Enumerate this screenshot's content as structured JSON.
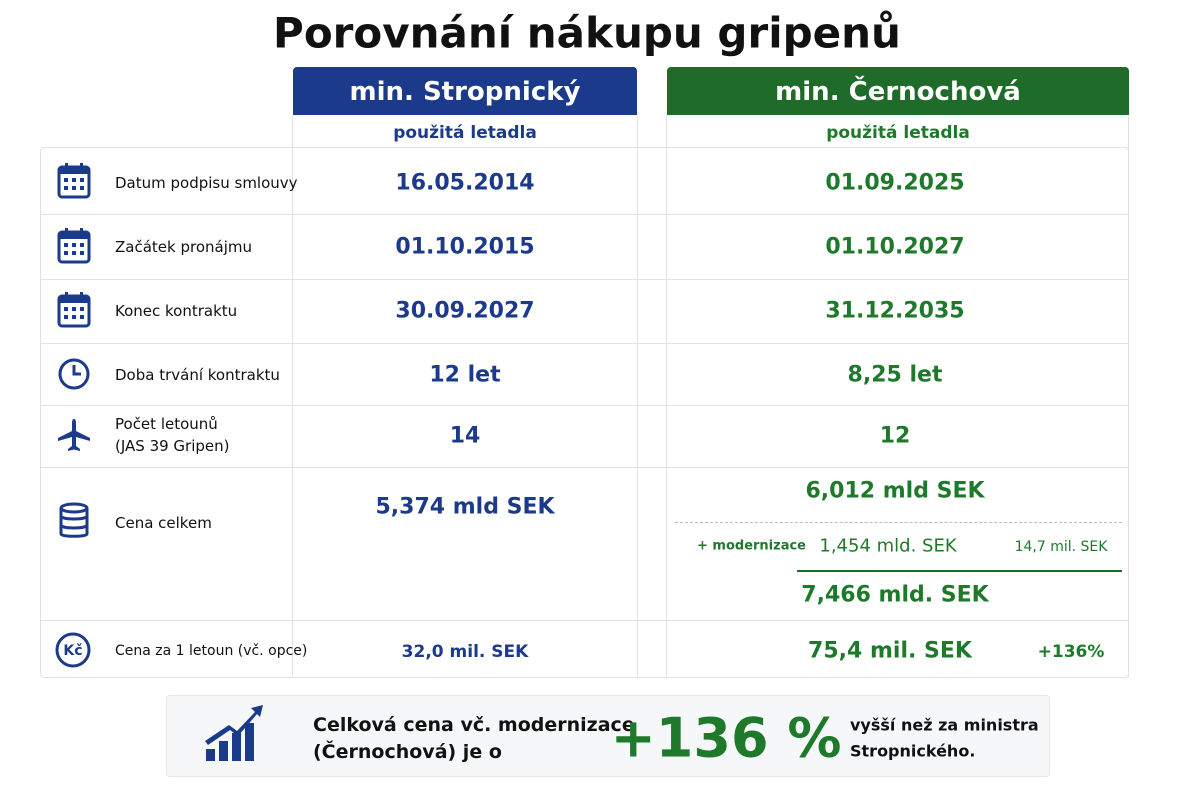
{
  "header": {
    "title": "Porovnání nákupu gripenů"
  },
  "columns": [
    {
      "name": "min. Stropnický",
      "subtitle": "použitá letadla"
    },
    {
      "name": "min. Černochová",
      "subtitle": "použitá letadla"
    }
  ],
  "rows": [
    {
      "label": "Datum podpisu smlouvy",
      "values": [
        "16.05.2014",
        "01.09.2025"
      ]
    },
    {
      "label": "Začátek pronájmu",
      "values": [
        "01.10.2015",
        "01.10.2027"
      ]
    },
    {
      "label": "Konec kontraktu",
      "values": [
        "30.09.2027",
        "31.12.2035"
      ]
    },
    {
      "label": "Doba trvání kontraktu",
      "values": [
        "12 let",
        "8,25 let"
      ]
    },
    {
      "label": "Počet letounů",
      "label_sub": "(JAS 39 Gripen)",
      "values": [
        "14",
        "12"
      ]
    },
    {
      "label": "Cena celkem",
      "values": [
        "5,374 mld SEK",
        "6,012 mld SEK"
      ],
      "modernization": {
        "label": "+ modernizace",
        "value": "1,454 mld. SEK",
        "per_plane": "14,7 mil. SEK",
        "total": "7,466 mld. SEK"
      }
    },
    {
      "label": "Cena za 1 letoun (vč. opce)",
      "values": [
        "32,0 mil. SEK",
        "75,4 mil. SEK"
      ],
      "change": "+136%"
    }
  ],
  "footer": {
    "text": [
      "Celková cena vč. modernizace",
      "(Černochová) je o"
    ],
    "value": "+136 %",
    "note": [
      "vyšší než za ministra",
      "Stropnického."
    ]
  }
}
